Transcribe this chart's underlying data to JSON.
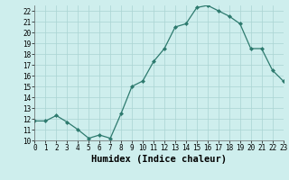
{
  "x": [
    0,
    1,
    2,
    3,
    4,
    5,
    6,
    7,
    8,
    9,
    10,
    11,
    12,
    13,
    14,
    15,
    16,
    17,
    18,
    19,
    20,
    21,
    22,
    23
  ],
  "y": [
    11.8,
    11.8,
    12.3,
    11.7,
    11.0,
    10.2,
    10.5,
    10.2,
    12.5,
    15.0,
    15.5,
    17.3,
    18.5,
    20.5,
    20.8,
    22.3,
    22.5,
    22.0,
    21.5,
    20.8,
    18.5,
    18.5,
    16.5,
    15.5
  ],
  "xlim": [
    0,
    23
  ],
  "ylim": [
    10,
    22.5
  ],
  "yticks": [
    10,
    11,
    12,
    13,
    14,
    15,
    16,
    17,
    18,
    19,
    20,
    21,
    22
  ],
  "xticks": [
    0,
    1,
    2,
    3,
    4,
    5,
    6,
    7,
    8,
    9,
    10,
    11,
    12,
    13,
    14,
    15,
    16,
    17,
    18,
    19,
    20,
    21,
    22,
    23
  ],
  "xlabel": "Humidex (Indice chaleur)",
  "line_color": "#2d7a6e",
  "marker": "D",
  "marker_size": 2.0,
  "bg_color": "#ceeeed",
  "grid_color": "#aad4d2",
  "tick_fontsize": 5.5,
  "label_fontsize": 7.5,
  "linewidth": 0.9
}
